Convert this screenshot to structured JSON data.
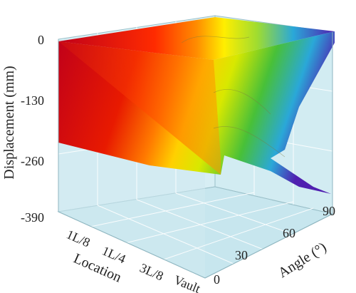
{
  "chart_data": {
    "type": "surface",
    "title": "",
    "zlabel": "Displacement (mm)",
    "xlabel": "Location",
    "ylabel": "Angle (°)",
    "z_ticks": [
      "0",
      "-130",
      "-260",
      "-390"
    ],
    "location_ticks": [
      "1L/8",
      "1L/4",
      "3L/8",
      "Vault"
    ],
    "angle_ticks": [
      "0",
      "30",
      "60",
      "90"
    ],
    "zlim": [
      -390,
      0
    ],
    "angle_range": [
      0,
      90
    ],
    "colormap": [
      "#c0001a",
      "#ff2b00",
      "#ff8c00",
      "#ffee00",
      "#b8e000",
      "#38c030",
      "#2aa8d8",
      "#5020b0"
    ],
    "surface_edge_profile": {
      "angle": [
        0,
        30,
        60,
        90
      ],
      "displacement_at_vault": [
        -250,
        -240,
        -285,
        -330
      ]
    }
  }
}
